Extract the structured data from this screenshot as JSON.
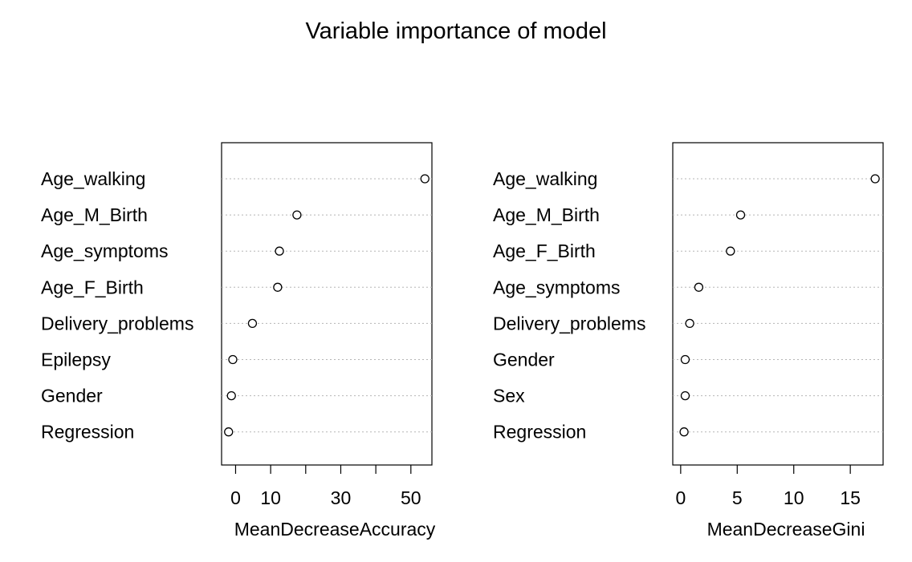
{
  "title": "Variable importance of model",
  "chart_data": [
    {
      "type": "scatter",
      "subtype": "dotchart",
      "title": "",
      "xlabel": "MeanDecreaseAccuracy",
      "ylabel": "",
      "categories": [
        "Age_walking",
        "Age_M_Birth",
        "Age_symptoms",
        "Age_F_Birth",
        "Delivery_problems",
        "Epilepsy",
        "Gender",
        "Regression"
      ],
      "values": [
        54.0,
        17.5,
        12.5,
        12.0,
        4.8,
        -0.8,
        -1.2,
        -2.0
      ],
      "xlim": [
        -4,
        56
      ],
      "xticks": [
        0,
        10,
        20,
        30,
        40,
        50
      ],
      "xtick_labels": [
        "0",
        "10",
        "",
        "30",
        "",
        "50"
      ],
      "grid": "dotted horizontal lines",
      "marker": "open circle"
    },
    {
      "type": "scatter",
      "subtype": "dotchart",
      "title": "",
      "xlabel": "MeanDecreaseGini",
      "ylabel": "",
      "categories": [
        "Age_walking",
        "Age_M_Birth",
        "Age_F_Birth",
        "Age_symptoms",
        "Delivery_problems",
        "Gender",
        "Sex",
        "Regression"
      ],
      "values": [
        17.2,
        5.3,
        4.4,
        1.6,
        0.8,
        0.4,
        0.4,
        0.3
      ],
      "xlim": [
        -0.7,
        17.9
      ],
      "xticks": [
        0,
        5,
        10,
        15
      ],
      "xtick_labels": [
        "0",
        "5",
        "10",
        "15"
      ],
      "grid": "dotted horizontal lines",
      "marker": "open circle"
    }
  ]
}
